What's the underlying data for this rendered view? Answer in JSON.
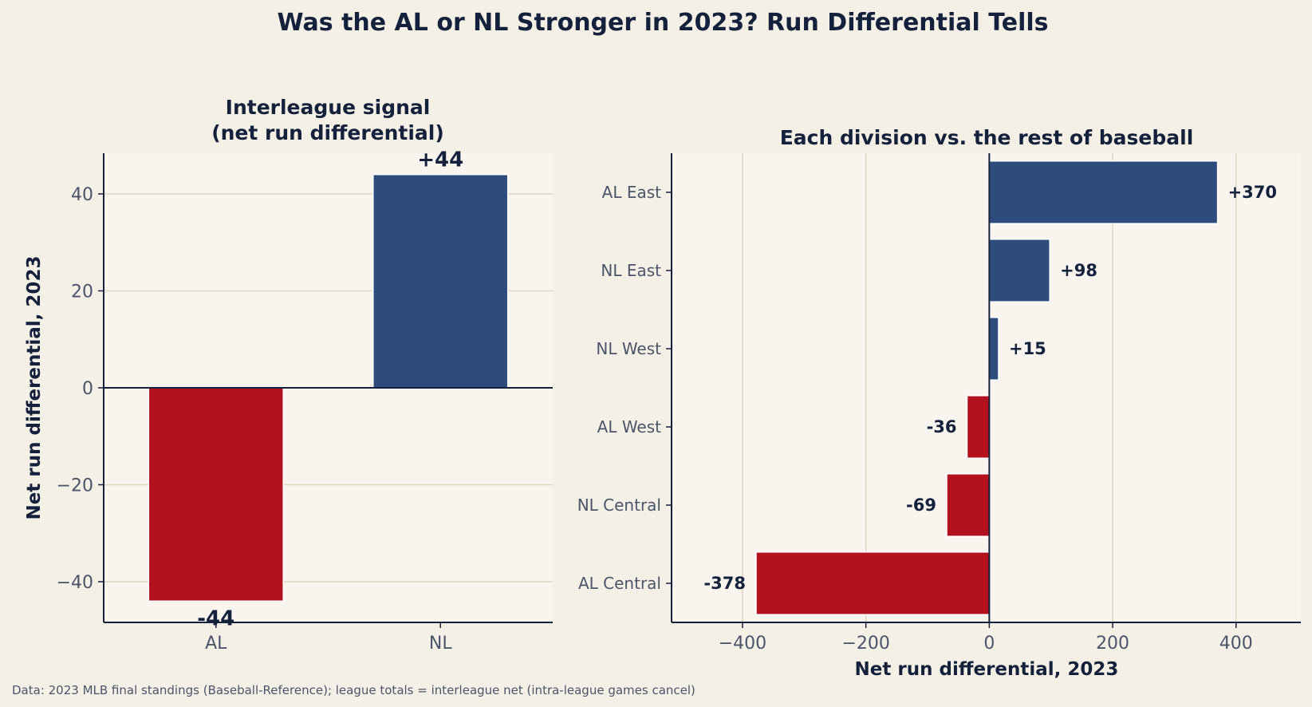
{
  "title": "Was the AL or NL Stronger in 2023? Run Differential Tells",
  "footnote": "Data: 2023 MLB final standings (Baseball-Reference); league totals = interleague net (intra-league games cancel)",
  "colors": {
    "positive": "#2d4b7c",
    "negative": "#b3111e",
    "text": "#14213d",
    "tick": "#4a556b",
    "grid": "#e0d6bd",
    "panel_bg": "#f9f5ee",
    "page_bg": "#f5f0e6"
  },
  "chart_data": [
    {
      "type": "bar",
      "orientation": "vertical",
      "title": "Interleague signal\n(net run differential)",
      "categories": [
        "AL",
        "NL"
      ],
      "values": [
        -44,
        44
      ],
      "data_labels": [
        "-44",
        "+44"
      ],
      "ylabel": "Net run differential, 2023",
      "xlabel": "",
      "ylim": [
        -48.4,
        48.4
      ],
      "yticks": [
        -40,
        -20,
        0,
        20,
        40
      ],
      "ytick_labels": [
        "−40",
        "−20",
        "0",
        "20",
        "40"
      ],
      "grid": "y"
    },
    {
      "type": "bar",
      "orientation": "horizontal",
      "title": "Each division vs. the rest of baseball",
      "categories": [
        "AL East",
        "NL East",
        "NL West",
        "AL West",
        "NL Central",
        "AL Central"
      ],
      "values": [
        370,
        98,
        15,
        -36,
        -69,
        -378
      ],
      "data_labels": [
        "+370",
        "+98",
        "+15",
        "-36",
        "-69",
        "-378"
      ],
      "xlabel": "Net run differential, 2023",
      "ylabel": "",
      "xlim": [
        -515,
        505
      ],
      "xticks": [
        -400,
        -200,
        0,
        200,
        400
      ],
      "xtick_labels": [
        "−400",
        "−200",
        "0",
        "200",
        "400"
      ],
      "grid": "x"
    }
  ]
}
